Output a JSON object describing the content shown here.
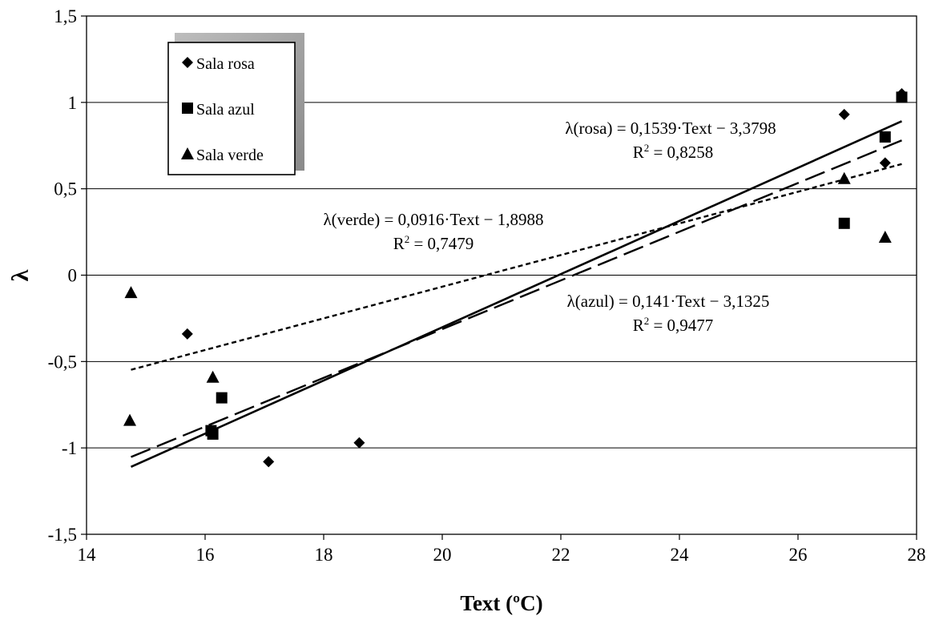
{
  "chart_data": {
    "type": "scatter",
    "xlabel": "Text (ºC)",
    "ylabel": "λ",
    "xlim": [
      14,
      28
    ],
    "ylim": [
      -1.5,
      1.5
    ],
    "xticks": [
      14,
      16,
      18,
      20,
      22,
      24,
      26,
      28
    ],
    "yticks": [
      -1.5,
      -1,
      -0.5,
      0,
      0.5,
      1,
      1.5
    ],
    "xtick_labels": [
      "14",
      "16",
      "18",
      "20",
      "22",
      "24",
      "26",
      "28"
    ],
    "ytick_labels": [
      "-1,5",
      "-1",
      "-0,5",
      "0",
      "0,5",
      "1",
      "1,5"
    ],
    "grid": "horizontal",
    "legend_position": "top-left",
    "series": [
      {
        "name": "Sala rosa",
        "marker": "diamond",
        "points": [
          [
            15.7,
            -0.34
          ],
          [
            17.07,
            -1.08
          ],
          [
            18.6,
            -0.97
          ],
          [
            26.78,
            0.93
          ],
          [
            27.47,
            0.65
          ],
          [
            27.75,
            1.05
          ]
        ],
        "trend": {
          "slope": 0.1539,
          "intercept": -3.3798,
          "x_range": [
            14.75,
            27.75
          ],
          "style": "solid"
        },
        "equation": "λ(rosa) = 0,1539·Text − 3,3798",
        "r2_label": "R",
        "r2_value": " = 0,8258"
      },
      {
        "name": "Sala azul",
        "marker": "square",
        "points": [
          [
            16.1,
            -0.9
          ],
          [
            16.13,
            -0.92
          ],
          [
            16.28,
            -0.71
          ],
          [
            26.78,
            0.3
          ],
          [
            27.47,
            0.8
          ],
          [
            27.75,
            1.03
          ]
        ],
        "trend": {
          "slope": 0.141,
          "intercept": -3.1325,
          "x_range": [
            14.75,
            27.75
          ],
          "style": "dashed"
        },
        "equation": "λ(azul) = 0,141·Text − 3,1325",
        "r2_label": "R",
        "r2_value": " = 0,9477"
      },
      {
        "name": "Sala verde",
        "marker": "triangle",
        "points": [
          [
            14.73,
            -0.84
          ],
          [
            14.75,
            -0.1
          ],
          [
            16.13,
            -0.59
          ],
          [
            26.78,
            0.56
          ],
          [
            27.47,
            0.22
          ]
        ],
        "trend": {
          "slope": 0.0916,
          "intercept": -1.8988,
          "x_range": [
            14.75,
            27.75
          ],
          "style": "dotted"
        },
        "equation": "λ(verde) = 0,0916·Text − 1,8988",
        "r2_label": "R",
        "r2_value": " = 0,7479"
      }
    ]
  }
}
